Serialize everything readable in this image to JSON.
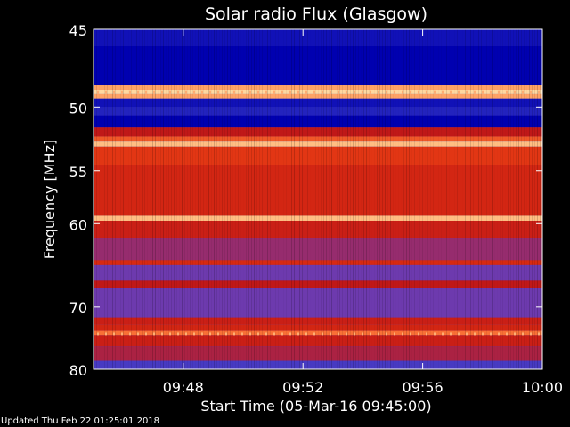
{
  "chart_data": {
    "type": "heatmap",
    "title": "Solar radio Flux (Glasgow)",
    "xlabel": "Start Time (05-Mar-16 09:45:00)",
    "ylabel": "Frequency [MHz]",
    "x_range": [
      "09:45",
      "10:00"
    ],
    "x_ticks": [
      "09:48",
      "09:52",
      "09:56",
      "10:00"
    ],
    "y_range": [
      45,
      80
    ],
    "y_ticks": [
      45,
      50,
      55,
      60,
      70,
      80
    ],
    "y_scale": "reciprocal",
    "colormap": [
      "#0000b0",
      "#3a3ac8",
      "#7a3aa8",
      "#c01818",
      "#e03010",
      "#ff8040",
      "#ffd8a0"
    ],
    "bands": [
      {
        "from": 45.0,
        "to": 46.0,
        "level": 0.05
      },
      {
        "from": 46.0,
        "to": 48.5,
        "level": 0.0
      },
      {
        "from": 48.5,
        "to": 48.8,
        "level": 0.9
      },
      {
        "from": 48.8,
        "to": 49.1,
        "level": 1.0
      },
      {
        "from": 49.1,
        "to": 49.4,
        "level": 0.9
      },
      {
        "from": 49.4,
        "to": 50.0,
        "level": 0.05
      },
      {
        "from": 50.0,
        "to": 50.6,
        "level": 0.1
      },
      {
        "from": 50.6,
        "to": 51.5,
        "level": 0.0
      },
      {
        "from": 51.5,
        "to": 52.2,
        "level": 0.5
      },
      {
        "from": 52.2,
        "to": 52.6,
        "level": 0.75
      },
      {
        "from": 52.6,
        "to": 53.0,
        "level": 0.95
      },
      {
        "from": 53.0,
        "to": 54.5,
        "level": 0.68
      },
      {
        "from": 54.5,
        "to": 59.2,
        "level": 0.6
      },
      {
        "from": 59.2,
        "to": 59.7,
        "level": 0.95
      },
      {
        "from": 59.7,
        "to": 61.5,
        "level": 0.55
      },
      {
        "from": 61.5,
        "to": 64.0,
        "level": 0.4
      },
      {
        "from": 64.0,
        "to": 64.6,
        "level": 0.62
      },
      {
        "from": 64.6,
        "to": 66.5,
        "level": 0.3
      },
      {
        "from": 66.5,
        "to": 67.5,
        "level": 0.5
      },
      {
        "from": 67.5,
        "to": 71.5,
        "level": 0.3
      },
      {
        "from": 71.5,
        "to": 72.5,
        "level": 0.55
      },
      {
        "from": 72.5,
        "to": 73.5,
        "level": 0.6
      },
      {
        "from": 73.5,
        "to": 74.3,
        "level": 0.8
      },
      {
        "from": 74.3,
        "to": 76.0,
        "level": 0.55
      },
      {
        "from": 76.0,
        "to": 78.5,
        "level": 0.45
      },
      {
        "from": 78.5,
        "to": 80.0,
        "level": 0.2
      }
    ]
  },
  "footer": {
    "updated": "Updated Thu Feb 22 01:25:01 2018"
  }
}
